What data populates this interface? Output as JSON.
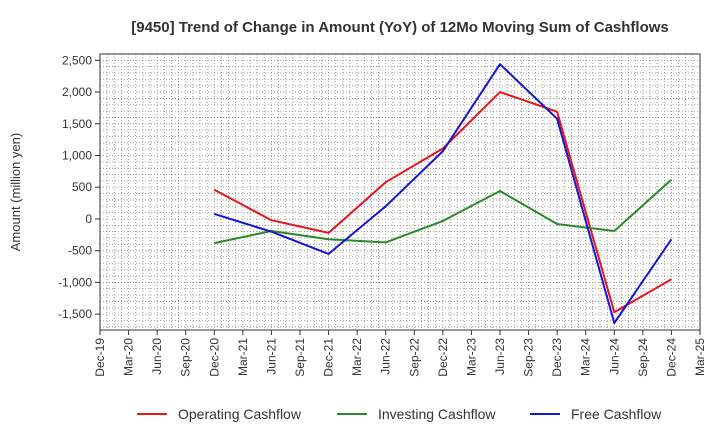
{
  "chart_data": {
    "type": "line",
    "title": "[9450]  Trend of Change in Amount (YoY) of 12Mo Moving Sum of Cashflows",
    "ylabel": "Amount (million yen)",
    "xlabel": "",
    "ylim": [
      -1750,
      2600
    ],
    "yticks": [
      2500,
      2000,
      1500,
      1000,
      500,
      0,
      -500,
      -1000,
      -1500
    ],
    "ytick_labels": [
      "2,500",
      "2,000",
      "1,500",
      "1,000",
      "500",
      "0",
      "-500",
      "-1,000",
      "-1,500"
    ],
    "categories": [
      "Dec-19",
      "Mar-20",
      "Jun-20",
      "Sep-20",
      "Dec-20",
      "Mar-21",
      "Jun-21",
      "Sep-21",
      "Dec-21",
      "Mar-22",
      "Jun-22",
      "Sep-22",
      "Dec-22",
      "Mar-23",
      "Jun-23",
      "Sep-23",
      "Dec-23",
      "Mar-24",
      "Jun-24",
      "Sep-24",
      "Dec-24",
      "Mar-25"
    ],
    "grid": true,
    "legend_position": "bottom",
    "series": [
      {
        "name": "Operating Cashflow",
        "color": "#e8141b",
        "values": [
          null,
          null,
          null,
          null,
          460,
          null,
          -20,
          null,
          -220,
          null,
          580,
          null,
          1110,
          null,
          2000,
          null,
          1690,
          null,
          -1470,
          null,
          -950,
          null
        ]
      },
      {
        "name": "Investing Cashflow",
        "color": "#2a8a2a",
        "values": [
          null,
          null,
          null,
          null,
          -380,
          null,
          -190,
          null,
          -320,
          null,
          -370,
          null,
          -30,
          null,
          440,
          null,
          -80,
          null,
          -190,
          null,
          620,
          null
        ]
      },
      {
        "name": "Free Cashflow",
        "color": "#1414d2",
        "values": [
          null,
          null,
          null,
          null,
          80,
          null,
          -200,
          null,
          -550,
          null,
          200,
          null,
          1070,
          null,
          2440,
          null,
          1580,
          null,
          -1640,
          null,
          -320,
          null
        ]
      }
    ]
  }
}
